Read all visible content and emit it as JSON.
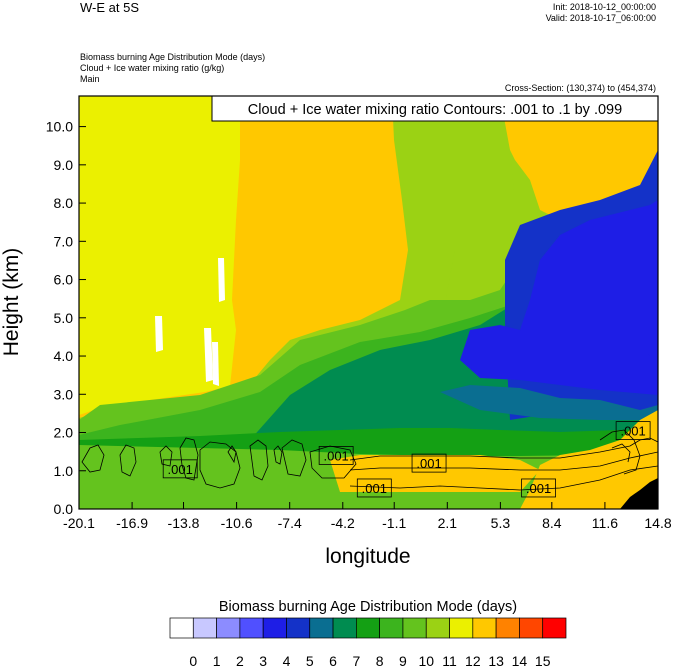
{
  "header": {
    "title": "W-E at 5S",
    "init": "Init: 2018-10-12_00:00:00",
    "valid": "Valid: 2018-10-17_06:00:00",
    "field1": "Biomass burning Age Distribution Mode   (days)",
    "field2": "Cloud + Ice water mixing ratio   (g/kg)",
    "field3": "Main",
    "cross_section": "Cross-Section: (130,374) to (454,374)"
  },
  "chart_data": {
    "type": "heatmap",
    "title": "",
    "xlabel": "longitude",
    "ylabel": "Height (km)",
    "xlim": [
      -20.1,
      14.8
    ],
    "ylim": [
      0.0,
      10.8
    ],
    "x_ticks": [
      "-20.1",
      "-16.9",
      "-13.8",
      "-10.6",
      "-7.4",
      "-4.2",
      "-1.1",
      "2.1",
      "5.3",
      "8.4",
      "11.6",
      "14.8"
    ],
    "y_ticks": [
      "0.0",
      "1.0",
      "2.0",
      "3.0",
      "4.0",
      "5.0",
      "6.0",
      "7.0",
      "8.0",
      "9.0",
      "10.0"
    ],
    "grid": false,
    "contour_info": "Cloud + Ice water mixing ratio Contours: .001 to .1 by .099",
    "contour_labels": [
      {
        "text": ".001",
        "x": -14.0,
        "y": 1.05
      },
      {
        "text": ".001",
        "x": -4.6,
        "y": 1.4
      },
      {
        "text": ".001",
        "x": 1.0,
        "y": 1.2
      },
      {
        "text": ".001",
        "x": -2.3,
        "y": 0.55
      },
      {
        "text": ".001",
        "x": 7.6,
        "y": 0.55
      },
      {
        "text": ".001",
        "x": 13.3,
        "y": 2.05
      }
    ],
    "colorbar": {
      "title": "Biomass burning Age Distribution Mode  (days)",
      "labels": [
        "0",
        "1",
        "2",
        "3",
        "4",
        "5",
        "6",
        "7",
        "8",
        "9",
        "10",
        "11",
        "12",
        "13",
        "14",
        "15"
      ],
      "colors": [
        "#ffffff",
        "#c8c8ff",
        "#8c8cff",
        "#5050ff",
        "#1e1ee6",
        "#1432c8",
        "#0a6e91",
        "#008c50",
        "#14a014",
        "#3cb41e",
        "#64c31e",
        "#9bd214",
        "#ebf000",
        "#ffc800",
        "#ff8200",
        "#ff4600",
        "#ff0000"
      ]
    }
  }
}
